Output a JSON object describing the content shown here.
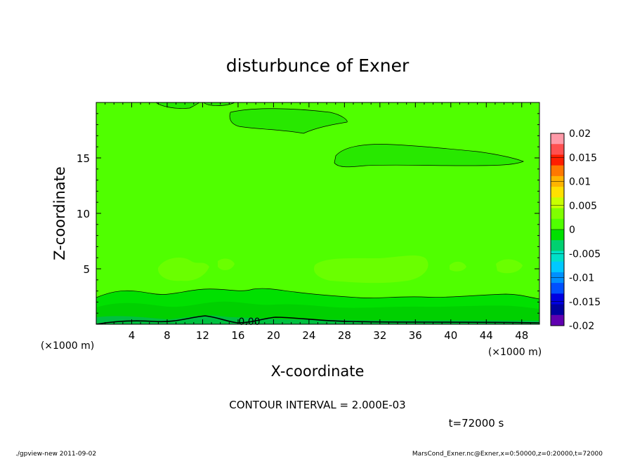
{
  "chart_data": {
    "type": "contour",
    "title": "disturbunce of Exner",
    "xlabel": "X-coordinate",
    "ylabel": "Z-coordinate",
    "x_unit": "(×1000 m)",
    "y_unit": "(×1000 m)",
    "xlim": [
      0,
      50
    ],
    "ylim": [
      0,
      20
    ],
    "x_ticks": [
      4,
      8,
      12,
      16,
      20,
      24,
      28,
      32,
      36,
      40,
      44,
      48
    ],
    "y_ticks": [
      5,
      10,
      15
    ],
    "colorbar": {
      "levels": [
        -0.02,
        -0.015,
        -0.01,
        -0.005,
        0,
        0.005,
        0.01,
        0.015,
        0.02
      ],
      "labels": [
        "0.02",
        "0.015",
        "0.01",
        "0.005",
        "0",
        "-0.005",
        "-0.01",
        "-0.015",
        "-0.02"
      ],
      "colors": [
        "#ff9aa8",
        "#ff5050",
        "#ff1e00",
        "#ff7800",
        "#ffb400",
        "#ffe000",
        "#c8ff00",
        "#80ff00",
        "#50ff00",
        "#00e000",
        "#00d070",
        "#00e0c8",
        "#00c8ff",
        "#0090ff",
        "#0050ff",
        "#0000e0",
        "#0000a0",
        "#6000b0"
      ]
    },
    "contour_labels": [
      "0.00"
    ],
    "contour_interval_text": "CONTOUR INTERVAL = 2.000E-03",
    "time_text": "t=72000 s"
  },
  "footer": {
    "left": "./gpview-new   2011-09-02",
    "right": "MarsCond_Exner.nc@Exner,x=0:50000,z=0:20000,t=72000"
  }
}
